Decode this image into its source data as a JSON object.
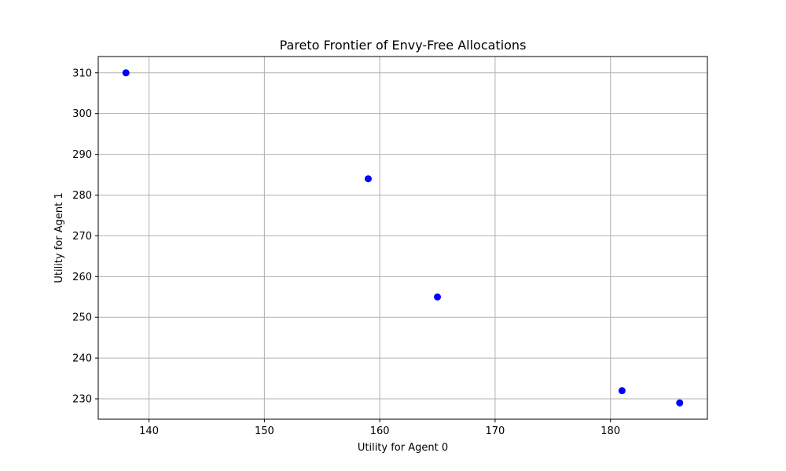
{
  "chart_data": {
    "type": "scatter",
    "title": "Pareto Frontier of Envy-Free Allocations",
    "xlabel": "Utility for Agent 0",
    "ylabel": "Utility for Agent 1",
    "xlim": [
      135.6,
      188.4
    ],
    "ylim": [
      225.0,
      314.0
    ],
    "xticks": [
      140,
      150,
      160,
      170,
      180
    ],
    "yticks": [
      230,
      240,
      250,
      260,
      270,
      280,
      290,
      300,
      310
    ],
    "grid": true,
    "marker_color": "#0000ff",
    "grid_color": "#b0b0b0",
    "points": [
      {
        "x": 138,
        "y": 310
      },
      {
        "x": 159,
        "y": 284
      },
      {
        "x": 165,
        "y": 255
      },
      {
        "x": 181,
        "y": 232
      },
      {
        "x": 186,
        "y": 229
      }
    ]
  }
}
